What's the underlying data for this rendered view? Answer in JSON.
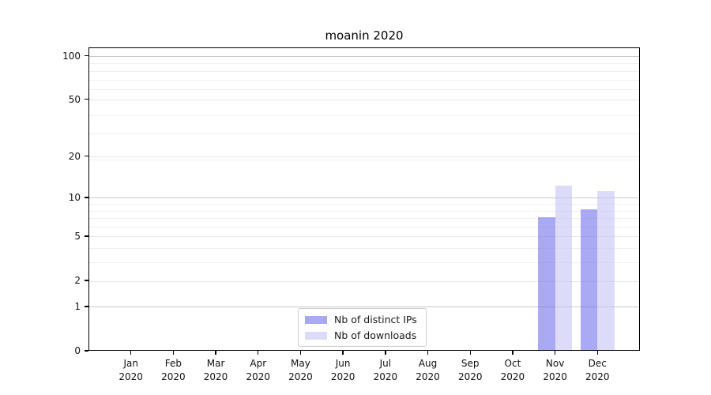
{
  "title": "moanin 2020",
  "chart_data": {
    "type": "bar",
    "title": "moanin 2020",
    "categories": [
      "Jan",
      "Feb",
      "Mar",
      "Apr",
      "May",
      "Jun",
      "Jul",
      "Aug",
      "Sep",
      "Oct",
      "Nov",
      "Dec"
    ],
    "year_label": "2020",
    "series": [
      {
        "name": "Nb of distinct IPs",
        "color": "rgba(112,112,237,0.6)",
        "values": [
          0,
          0,
          0,
          0,
          0,
          0,
          0,
          0,
          0,
          0,
          7,
          8
        ]
      },
      {
        "name": "Nb of downloads",
        "color": "rgba(197,197,247,0.6)",
        "values": [
          0,
          0,
          0,
          0,
          0,
          0,
          0,
          0,
          0,
          0,
          12,
          11
        ]
      }
    ],
    "xlabel": "",
    "ylabel": "",
    "yscale": "log1p",
    "ylim": [
      0,
      114
    ],
    "yticks": [
      0,
      1,
      2,
      5,
      10,
      20,
      50,
      100
    ],
    "minor_gridline_values": [
      3,
      4,
      6,
      7,
      8,
      9,
      19,
      29,
      39,
      59,
      69,
      79,
      89
    ],
    "grid": true,
    "legend_position": "lower center",
    "style": {
      "grid_major_dark": "#c8c8c8",
      "grid_major_light": "#e6e6e6",
      "grid_minor": "#efefef",
      "spine_color": "#000000",
      "background": "#ffffff"
    }
  }
}
